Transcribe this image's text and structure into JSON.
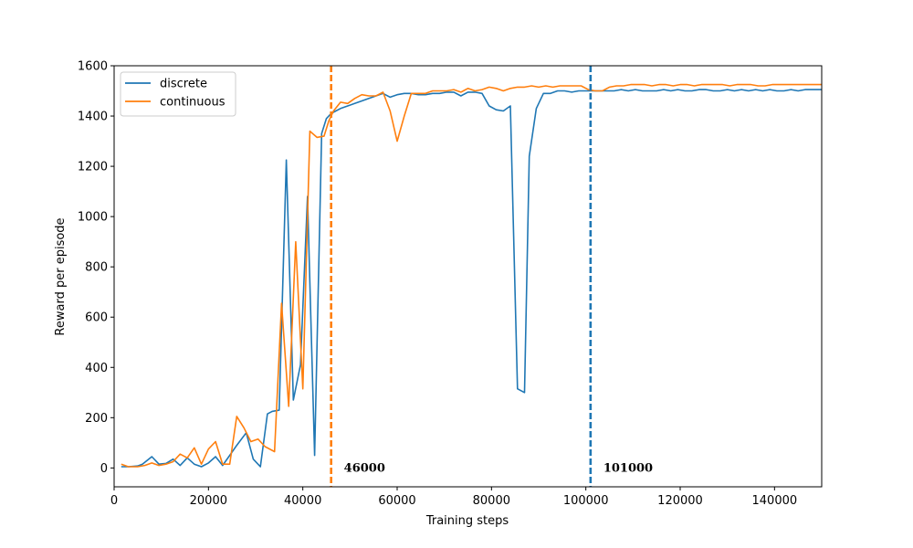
{
  "chart_data": {
    "type": "line",
    "xlabel": "Training steps",
    "ylabel": "Reward per episode",
    "xlim": [
      0,
      150000
    ],
    "ylim": [
      -75,
      1600
    ],
    "xticks": [
      0,
      20000,
      40000,
      60000,
      80000,
      100000,
      120000,
      140000
    ],
    "xtick_labels": [
      "0",
      "20000",
      "40000",
      "60000",
      "80000",
      "100000",
      "120000",
      "140000"
    ],
    "yticks": [
      0,
      200,
      400,
      600,
      800,
      1000,
      1200,
      1400,
      1600
    ],
    "ytick_labels": [
      "0",
      "200",
      "400",
      "600",
      "800",
      "1000",
      "1200",
      "1400",
      "1600"
    ],
    "grid": false,
    "legend_position": "top-left",
    "series": [
      {
        "name": "discrete",
        "color": "#1f77b4",
        "x": [
          1500,
          3000,
          5000,
          6000,
          8000,
          9500,
          11000,
          12500,
          14000,
          15500,
          17000,
          18500,
          20000,
          21500,
          23000,
          24500,
          26000,
          28000,
          29500,
          31000,
          32500,
          33500,
          35000,
          36500,
          38000,
          39500,
          41000,
          42500,
          44000,
          45000,
          46000,
          47000,
          48000,
          49500,
          51000,
          52500,
          54000,
          55500,
          57000,
          58500,
          60000,
          61500,
          63000,
          64500,
          66000,
          67500,
          69000,
          70500,
          72000,
          73500,
          75000,
          76500,
          78000,
          79500,
          81000,
          82500,
          84000,
          85500,
          87000,
          88000,
          89500,
          91000,
          92500,
          94000,
          95500,
          97000,
          98500,
          100000,
          101500,
          103000,
          104500,
          106000,
          107500,
          109000,
          110500,
          112000,
          113500,
          115000,
          116500,
          118000,
          119500,
          121000,
          122500,
          124000,
          125500,
          127000,
          128500,
          130000,
          131500,
          133000,
          134500,
          136000,
          137500,
          139000,
          140500,
          142000,
          143500,
          145000,
          146500,
          148000,
          150000
        ],
        "y": [
          5,
          5,
          8,
          15,
          45,
          15,
          18,
          35,
          10,
          40,
          15,
          5,
          20,
          45,
          10,
          50,
          90,
          140,
          35,
          5,
          215,
          225,
          230,
          1225,
          270,
          410,
          1080,
          50,
          1330,
          1390,
          1410,
          1420,
          1430,
          1440,
          1450,
          1460,
          1470,
          1480,
          1490,
          1475,
          1485,
          1490,
          1490,
          1485,
          1485,
          1490,
          1490,
          1495,
          1495,
          1480,
          1495,
          1495,
          1490,
          1440,
          1425,
          1420,
          1440,
          315,
          300,
          1240,
          1430,
          1490,
          1490,
          1500,
          1500,
          1495,
          1500,
          1500,
          1500,
          1500,
          1500,
          1500,
          1505,
          1500,
          1505,
          1500,
          1500,
          1500,
          1505,
          1500,
          1505,
          1500,
          1500,
          1505,
          1505,
          1500,
          1500,
          1505,
          1500,
          1505,
          1500,
          1505,
          1500,
          1505,
          1500,
          1500,
          1505,
          1500,
          1505,
          1505,
          1505
        ]
      },
      {
        "name": "continuous",
        "color": "#ff7f0e",
        "x": [
          1500,
          3000,
          5000,
          6500,
          8000,
          9500,
          11000,
          12500,
          14000,
          15500,
          17000,
          18500,
          20000,
          21500,
          23000,
          24500,
          26000,
          27500,
          29000,
          30500,
          32000,
          34000,
          35500,
          37000,
          38500,
          40000,
          41500,
          43000,
          44500,
          45500,
          46500,
          48000,
          49500,
          51000,
          52500,
          54000,
          55500,
          57000,
          58500,
          60000,
          61500,
          63000,
          64500,
          66000,
          67500,
          69000,
          70500,
          72000,
          73500,
          75000,
          76500,
          78000,
          79500,
          81000,
          82500,
          84000,
          85500,
          87000,
          88500,
          90000,
          91500,
          93000,
          94500,
          96000,
          97500,
          99000,
          100500,
          102000,
          103500,
          105000,
          106500,
          108000,
          109500,
          111000,
          112500,
          114000,
          115500,
          117000,
          118500,
          120000,
          121500,
          123000,
          124500,
          126000,
          127500,
          129000,
          130500,
          132000,
          133500,
          135000,
          136500,
          138000,
          139500,
          141000,
          142500,
          144000,
          145500,
          147000,
          148500,
          150000
        ],
        "y": [
          15,
          5,
          5,
          10,
          20,
          10,
          15,
          25,
          55,
          40,
          80,
          15,
          75,
          105,
          15,
          15,
          205,
          160,
          105,
          115,
          85,
          65,
          655,
          245,
          900,
          315,
          1340,
          1315,
          1320,
          1380,
          1420,
          1455,
          1450,
          1470,
          1485,
          1480,
          1480,
          1495,
          1420,
          1300,
          1400,
          1490,
          1490,
          1490,
          1500,
          1500,
          1500,
          1505,
          1495,
          1510,
          1500,
          1505,
          1515,
          1510,
          1500,
          1510,
          1515,
          1515,
          1520,
          1515,
          1520,
          1515,
          1520,
          1520,
          1520,
          1520,
          1505,
          1500,
          1500,
          1515,
          1520,
          1520,
          1525,
          1525,
          1525,
          1520,
          1525,
          1525,
          1520,
          1525,
          1525,
          1520,
          1525,
          1525,
          1525,
          1525,
          1520,
          1525,
          1525,
          1525,
          1520,
          1520,
          1525,
          1525,
          1525,
          1525,
          1525,
          1525,
          1525,
          1525
        ]
      }
    ],
    "vlines": [
      {
        "x": 46000,
        "color": "#ff7f0e",
        "label": "46000"
      },
      {
        "x": 101000,
        "color": "#1f77b4",
        "label": "101000"
      }
    ]
  }
}
